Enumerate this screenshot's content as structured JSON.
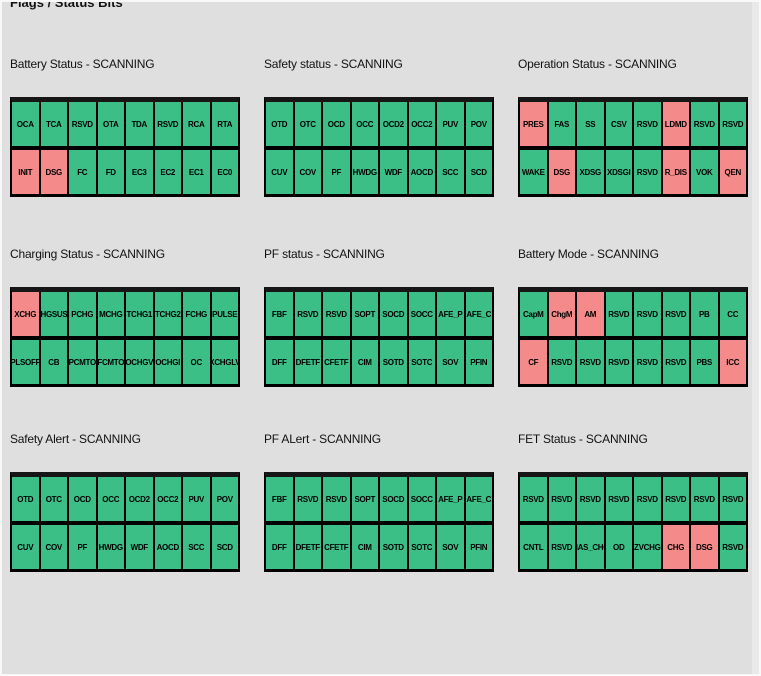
{
  "window": {
    "title": "Flags / Status Bits"
  },
  "colors": {
    "background": "#dfdfdf",
    "flag_ok_green": "#3cbe87",
    "flag_alert_red": "#f58a8a",
    "grid_border": "#000000",
    "text": "#111111"
  },
  "legend": {
    "ok_state": "ok",
    "alert_state": "alert"
  },
  "panels": [
    {
      "title": "Battery Status - SCANNING",
      "name": "Battery Status",
      "status": "SCANNING",
      "rows": [
        [
          {
            "label": "OCA",
            "state": "ok"
          },
          {
            "label": "TCA",
            "state": "ok"
          },
          {
            "label": "RSVD",
            "state": "ok"
          },
          {
            "label": "OTA",
            "state": "ok"
          },
          {
            "label": "TDA",
            "state": "ok"
          },
          {
            "label": "RSVD",
            "state": "ok"
          },
          {
            "label": "RCA",
            "state": "ok"
          },
          {
            "label": "RTA",
            "state": "ok"
          }
        ],
        [
          {
            "label": "INIT",
            "state": "alert"
          },
          {
            "label": "DSG",
            "state": "alert"
          },
          {
            "label": "FC",
            "state": "ok"
          },
          {
            "label": "FD",
            "state": "ok"
          },
          {
            "label": "EC3",
            "state": "ok"
          },
          {
            "label": "EC2",
            "state": "ok"
          },
          {
            "label": "EC1",
            "state": "ok"
          },
          {
            "label": "EC0",
            "state": "ok"
          }
        ]
      ]
    },
    {
      "title": "Safety status - SCANNING",
      "name": "Safety status",
      "status": "SCANNING",
      "rows": [
        [
          {
            "label": "OTD",
            "state": "ok"
          },
          {
            "label": "OTC",
            "state": "ok"
          },
          {
            "label": "OCD",
            "state": "ok"
          },
          {
            "label": "OCC",
            "state": "ok"
          },
          {
            "label": "OCD2",
            "state": "ok"
          },
          {
            "label": "OCC2",
            "state": "ok"
          },
          {
            "label": "PUV",
            "state": "ok"
          },
          {
            "label": "POV",
            "state": "ok"
          }
        ],
        [
          {
            "label": "CUV",
            "state": "ok"
          },
          {
            "label": "COV",
            "state": "ok"
          },
          {
            "label": "PF",
            "state": "ok"
          },
          {
            "label": "HWDG",
            "state": "ok"
          },
          {
            "label": "WDF",
            "state": "ok"
          },
          {
            "label": "AOCD",
            "state": "ok"
          },
          {
            "label": "SCC",
            "state": "ok"
          },
          {
            "label": "SCD",
            "state": "ok"
          }
        ]
      ]
    },
    {
      "title": "Operation Status - SCANNING",
      "name": "Operation Status",
      "status": "SCANNING",
      "rows": [
        [
          {
            "label": "PRES",
            "state": "alert"
          },
          {
            "label": "FAS",
            "state": "ok"
          },
          {
            "label": "SS",
            "state": "ok"
          },
          {
            "label": "CSV",
            "state": "ok"
          },
          {
            "label": "RSVD",
            "state": "ok"
          },
          {
            "label": "LDMD",
            "state": "alert"
          },
          {
            "label": "RSVD",
            "state": "ok"
          },
          {
            "label": "RSVD",
            "state": "ok"
          }
        ],
        [
          {
            "label": "WAKE",
            "state": "ok"
          },
          {
            "label": "DSG",
            "state": "alert"
          },
          {
            "label": "XDSG",
            "state": "ok"
          },
          {
            "label": "XDSGI",
            "state": "ok"
          },
          {
            "label": "RSVD",
            "state": "ok"
          },
          {
            "label": "R_DIS",
            "state": "alert"
          },
          {
            "label": "VOK",
            "state": "ok"
          },
          {
            "label": "QEN",
            "state": "alert"
          }
        ]
      ]
    },
    {
      "title": "Charging Status - SCANNING",
      "name": "Charging Status",
      "status": "SCANNING",
      "rows": [
        [
          {
            "label": "XCHG",
            "state": "alert"
          },
          {
            "label": "CHGSUSP",
            "state": "ok"
          },
          {
            "label": "PCHG",
            "state": "ok"
          },
          {
            "label": "MCHG",
            "state": "ok"
          },
          {
            "label": "TCHG1",
            "state": "ok"
          },
          {
            "label": "TCHG2",
            "state": "ok"
          },
          {
            "label": "FCHG",
            "state": "ok"
          },
          {
            "label": "PULSE",
            "state": "ok"
          }
        ],
        [
          {
            "label": "PLSOFF",
            "state": "ok"
          },
          {
            "label": "CB",
            "state": "ok"
          },
          {
            "label": "PCMTO",
            "state": "ok"
          },
          {
            "label": "FCMTO",
            "state": "ok"
          },
          {
            "label": "OCHGV",
            "state": "ok"
          },
          {
            "label": "OCHGI",
            "state": "ok"
          },
          {
            "label": "OC",
            "state": "ok"
          },
          {
            "label": "XCHGLV",
            "state": "ok"
          }
        ]
      ]
    },
    {
      "title": "PF status - SCANNING",
      "name": "PF status",
      "status": "SCANNING",
      "rows": [
        [
          {
            "label": "FBF",
            "state": "ok"
          },
          {
            "label": "RSVD",
            "state": "ok"
          },
          {
            "label": "RSVD",
            "state": "ok"
          },
          {
            "label": "SOPT",
            "state": "ok"
          },
          {
            "label": "SOCD",
            "state": "ok"
          },
          {
            "label": "SOCC",
            "state": "ok"
          },
          {
            "label": "AFE_P",
            "state": "ok"
          },
          {
            "label": "AFE_C",
            "state": "ok"
          }
        ],
        [
          {
            "label": "DFF",
            "state": "ok"
          },
          {
            "label": "DFETF",
            "state": "ok"
          },
          {
            "label": "CFETF",
            "state": "ok"
          },
          {
            "label": "CIM",
            "state": "ok"
          },
          {
            "label": "SOTD",
            "state": "ok"
          },
          {
            "label": "SOTC",
            "state": "ok"
          },
          {
            "label": "SOV",
            "state": "ok"
          },
          {
            "label": "PFIN",
            "state": "ok"
          }
        ]
      ]
    },
    {
      "title": "Battery Mode - SCANNING",
      "name": "Battery Mode",
      "status": "SCANNING",
      "rows": [
        [
          {
            "label": "CapM",
            "state": "ok"
          },
          {
            "label": "ChgM",
            "state": "alert"
          },
          {
            "label": "AM",
            "state": "alert"
          },
          {
            "label": "RSVD",
            "state": "ok"
          },
          {
            "label": "RSVD",
            "state": "ok"
          },
          {
            "label": "RSVD",
            "state": "ok"
          },
          {
            "label": "PB",
            "state": "ok"
          },
          {
            "label": "CC",
            "state": "ok"
          }
        ],
        [
          {
            "label": "CF",
            "state": "alert"
          },
          {
            "label": "RSVD",
            "state": "ok"
          },
          {
            "label": "RSVD",
            "state": "ok"
          },
          {
            "label": "RSVD",
            "state": "ok"
          },
          {
            "label": "RSVD",
            "state": "ok"
          },
          {
            "label": "RSVD",
            "state": "ok"
          },
          {
            "label": "PBS",
            "state": "ok"
          },
          {
            "label": "ICC",
            "state": "alert"
          }
        ]
      ]
    },
    {
      "title": "Safety Alert - SCANNING",
      "name": "Safety Alert",
      "status": "SCANNING",
      "rows": [
        [
          {
            "label": "OTD",
            "state": "ok"
          },
          {
            "label": "OTC",
            "state": "ok"
          },
          {
            "label": "OCD",
            "state": "ok"
          },
          {
            "label": "OCC",
            "state": "ok"
          },
          {
            "label": "OCD2",
            "state": "ok"
          },
          {
            "label": "OCC2",
            "state": "ok"
          },
          {
            "label": "PUV",
            "state": "ok"
          },
          {
            "label": "POV",
            "state": "ok"
          }
        ],
        [
          {
            "label": "CUV",
            "state": "ok"
          },
          {
            "label": "COV",
            "state": "ok"
          },
          {
            "label": "PF",
            "state": "ok"
          },
          {
            "label": "HWDG",
            "state": "ok"
          },
          {
            "label": "WDF",
            "state": "ok"
          },
          {
            "label": "AOCD",
            "state": "ok"
          },
          {
            "label": "SCC",
            "state": "ok"
          },
          {
            "label": "SCD",
            "state": "ok"
          }
        ]
      ]
    },
    {
      "title": "PF ALert - SCANNING",
      "name": "PF ALert",
      "status": "SCANNING",
      "rows": [
        [
          {
            "label": "FBF",
            "state": "ok"
          },
          {
            "label": "RSVD",
            "state": "ok"
          },
          {
            "label": "RSVD",
            "state": "ok"
          },
          {
            "label": "SOPT",
            "state": "ok"
          },
          {
            "label": "SOCD",
            "state": "ok"
          },
          {
            "label": "SOCC",
            "state": "ok"
          },
          {
            "label": "AFE_P",
            "state": "ok"
          },
          {
            "label": "AFE_C",
            "state": "ok"
          }
        ],
        [
          {
            "label": "DFF",
            "state": "ok"
          },
          {
            "label": "DFETF",
            "state": "ok"
          },
          {
            "label": "CFETF",
            "state": "ok"
          },
          {
            "label": "CIM",
            "state": "ok"
          },
          {
            "label": "SOTD",
            "state": "ok"
          },
          {
            "label": "SOTC",
            "state": "ok"
          },
          {
            "label": "SOV",
            "state": "ok"
          },
          {
            "label": "PFIN",
            "state": "ok"
          }
        ]
      ]
    },
    {
      "title": "FET Status - SCANNING",
      "name": "FET Status",
      "status": "SCANNING",
      "rows": [
        [
          {
            "label": "RSVD",
            "state": "ok"
          },
          {
            "label": "RSVD",
            "state": "ok"
          },
          {
            "label": "RSVD",
            "state": "ok"
          },
          {
            "label": "RSVD",
            "state": "ok"
          },
          {
            "label": "RSVD",
            "state": "ok"
          },
          {
            "label": "RSVD",
            "state": "ok"
          },
          {
            "label": "RSVD",
            "state": "ok"
          },
          {
            "label": "RSVD",
            "state": "ok"
          }
        ],
        [
          {
            "label": "CNTL",
            "state": "ok"
          },
          {
            "label": "RSVD",
            "state": "ok"
          },
          {
            "label": "MAS_CHG",
            "state": "ok"
          },
          {
            "label": "OD",
            "state": "ok"
          },
          {
            "label": "ZVCHG",
            "state": "ok"
          },
          {
            "label": "CHG",
            "state": "alert"
          },
          {
            "label": "DSG",
            "state": "alert"
          },
          {
            "label": "RSVD",
            "state": "ok"
          }
        ]
      ]
    }
  ]
}
